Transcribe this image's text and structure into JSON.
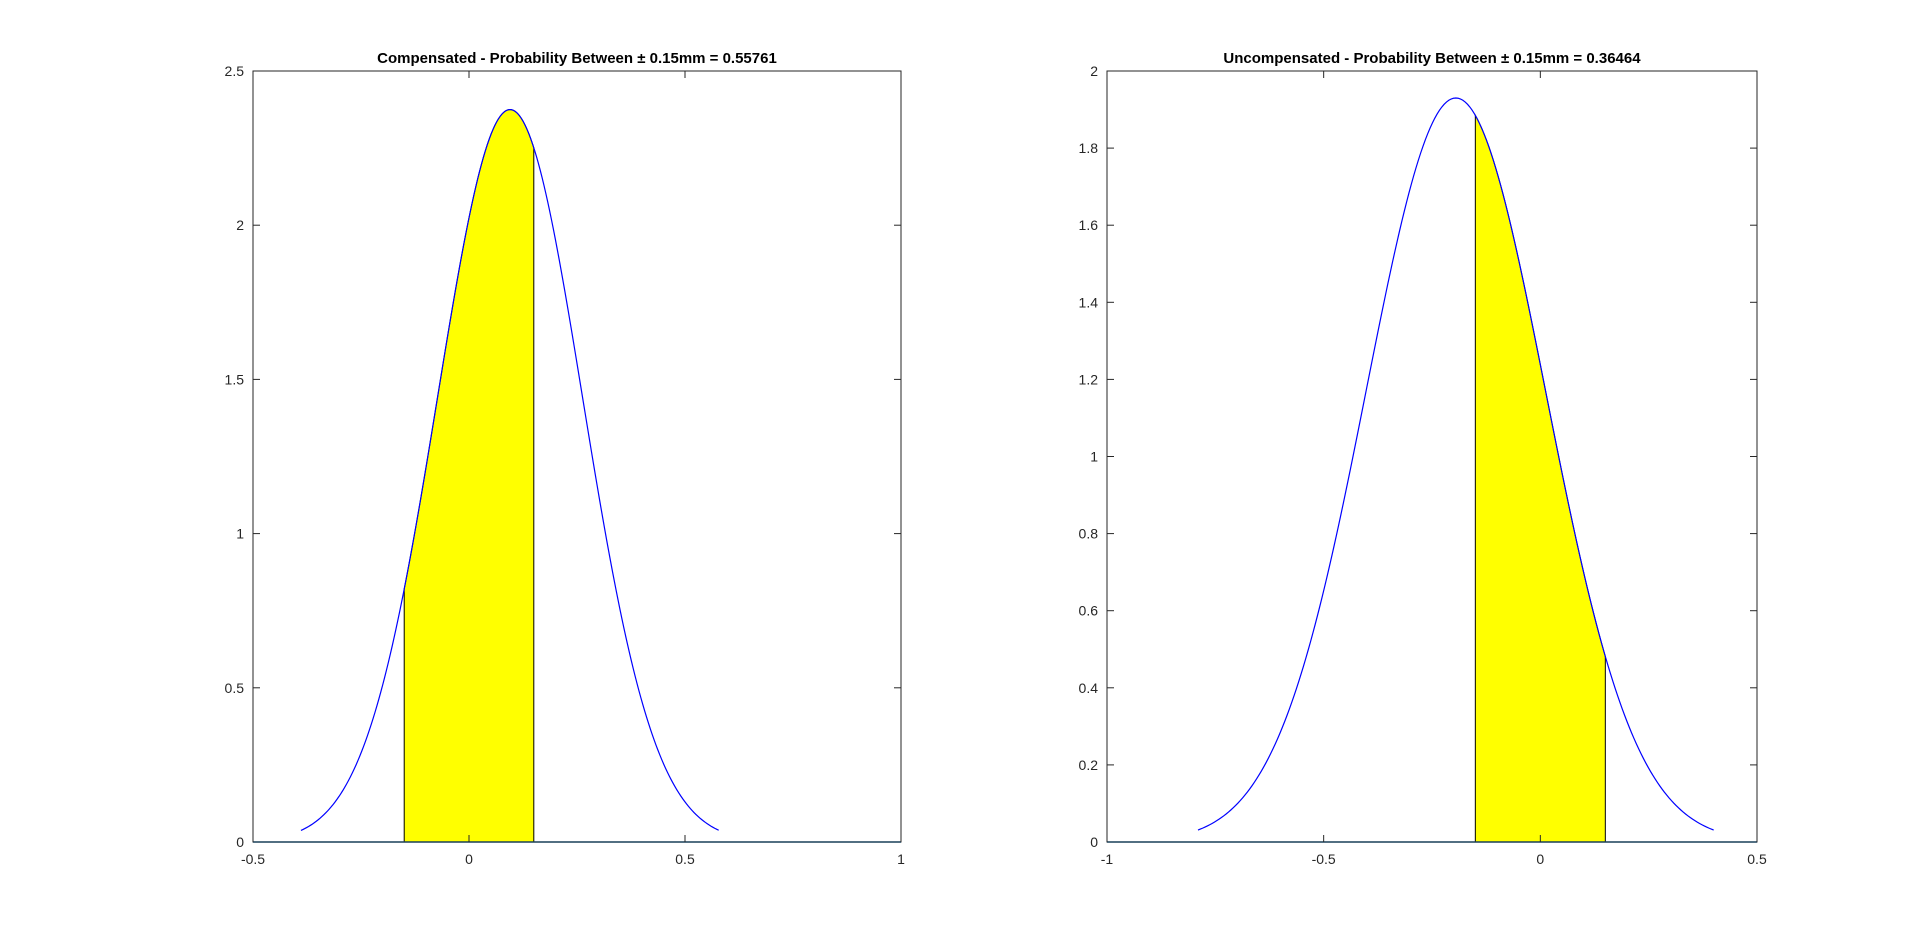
{
  "chart_data": [
    {
      "type": "area",
      "title": "Compensated - Probability Between ± 0.15mm = 0.55761",
      "xlim": [
        -0.5,
        1
      ],
      "ylim": [
        0,
        2.5
      ],
      "xticks": [
        -0.5,
        0,
        0.5,
        1
      ],
      "xtick_labels": [
        "-0.5",
        "0",
        "0.5",
        "1"
      ],
      "yticks": [
        0,
        0.5,
        1,
        1.5,
        2,
        2.5
      ],
      "ytick_labels": [
        "0",
        "0.5",
        "1",
        "1.5",
        "2",
        "2.5"
      ],
      "grid": false,
      "curve": {
        "mean": 0.095,
        "std": 0.168,
        "x_range": [
          -0.389,
          0.578
        ],
        "peak": 2.375
      },
      "shaded_region": {
        "from": -0.15,
        "to": 0.15,
        "probability": 0.55761
      },
      "baseline": 0,
      "colors": {
        "curve": "#0000ff",
        "fill": "#ffff00",
        "edge": "#000000",
        "baseline": "#0072bd"
      }
    },
    {
      "type": "area",
      "title": "Uncompensated - Probability Between ± 0.15mm = 0.36464",
      "xlim": [
        -1,
        0.5
      ],
      "ylim": [
        0,
        2
      ],
      "xticks": [
        -1,
        -0.5,
        0,
        0.5
      ],
      "xtick_labels": [
        "-1",
        "-0.5",
        "0",
        "0.5"
      ],
      "yticks": [
        0,
        0.2,
        0.4,
        0.6,
        0.8,
        1,
        1.2,
        1.4,
        1.6,
        1.8,
        2
      ],
      "ytick_labels": [
        "0",
        "0.2",
        "0.4",
        "0.6",
        "0.8",
        "1",
        "1.2",
        "1.4",
        "1.6",
        "1.8",
        "2"
      ],
      "grid": false,
      "curve": {
        "mean": -0.195,
        "std": 0.207,
        "x_range": [
          -0.79,
          0.4
        ],
        "peak": 1.93
      },
      "shaded_region": {
        "from": -0.15,
        "to": 0.15,
        "probability": 0.36464
      },
      "baseline": 0,
      "colors": {
        "curve": "#0000ff",
        "fill": "#ffff00",
        "edge": "#000000",
        "baseline": "#0072bd"
      }
    }
  ]
}
